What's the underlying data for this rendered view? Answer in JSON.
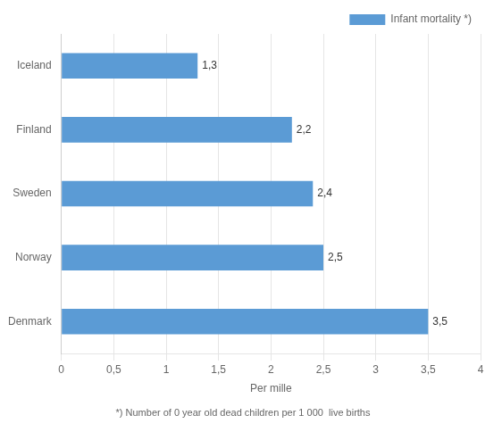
{
  "chart_data": {
    "type": "bar",
    "orientation": "horizontal",
    "xlabel": "Per mille",
    "footnote": "*) Number of 0 year old dead children per 1 000  live births",
    "categories": [
      "Denmark",
      "Norway",
      "Sweden",
      "Finland",
      "Iceland"
    ],
    "series": [
      {
        "name": "Infant mortality *)",
        "color": "#5b9bd5",
        "values": [
          3.5,
          2.5,
          2.4,
          2.2,
          1.3
        ],
        "value_labels": [
          "3,5",
          "2,5",
          "2,4",
          "2,2",
          "1,3"
        ]
      }
    ],
    "xlim": [
      0,
      4
    ],
    "xticks": [
      0,
      {
        "value": 0.5,
        "label": "0,5"
      },
      1,
      {
        "value": 1.5,
        "label": "1,5"
      },
      2,
      {
        "value": 2.5,
        "label": "2,5"
      },
      3,
      {
        "value": 3.5,
        "label": "3,5"
      },
      4
    ],
    "grid": "x",
    "legend": "upper right",
    "data_labels": true
  }
}
